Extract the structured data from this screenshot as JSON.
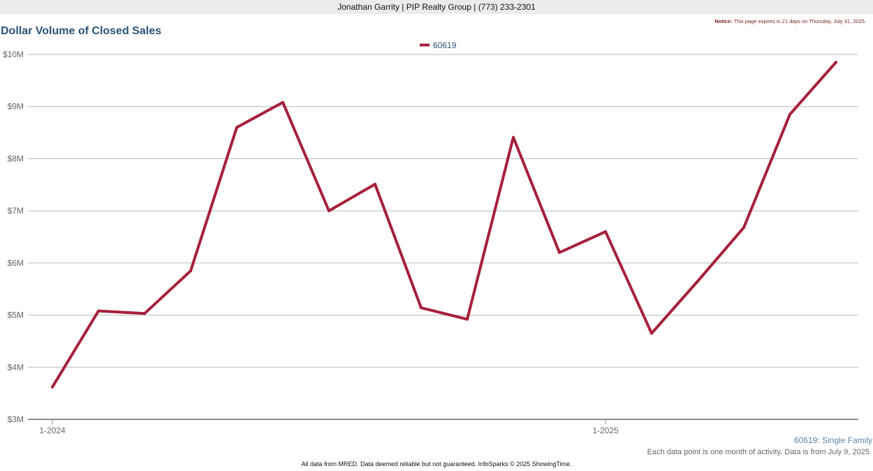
{
  "header": {
    "contact": "Jonathan Garrity | PIP Realty Group | (773) 233-2301",
    "notice_label": "Notice:",
    "notice_text": "This page expires in 21 days on Thursday, July 31, 2025."
  },
  "chart_data": {
    "type": "line",
    "title": "Dollar Volume of Closed Sales",
    "xlabel": "",
    "ylabel": "",
    "x": [
      "2024-01",
      "2024-02",
      "2024-03",
      "2024-04",
      "2024-05",
      "2024-06",
      "2024-07",
      "2024-08",
      "2024-09",
      "2024-10",
      "2024-11",
      "2024-12",
      "2025-01",
      "2025-02",
      "2025-03",
      "2025-04",
      "2025-05",
      "2025-06"
    ],
    "series": [
      {
        "name": "60619",
        "color": "#a6203a",
        "values": [
          3.62,
          5.08,
          5.03,
          5.85,
          8.6,
          9.08,
          7.0,
          7.51,
          5.14,
          4.92,
          8.41,
          6.2,
          6.6,
          4.65,
          5.65,
          6.68,
          8.85,
          9.85
        ]
      }
    ],
    "ylim": [
      3,
      10
    ],
    "y_ticks": [
      {
        "value": 3,
        "label": "$3M"
      },
      {
        "value": 4,
        "label": "$4M"
      },
      {
        "value": 5,
        "label": "$5M"
      },
      {
        "value": 6,
        "label": "$6M"
      },
      {
        "value": 7,
        "label": "$7M"
      },
      {
        "value": 8,
        "label": "$8M"
      },
      {
        "value": 9,
        "label": "$9M"
      },
      {
        "value": 10,
        "label": "$10M"
      }
    ],
    "x_ticks": [
      {
        "index": 0,
        "label": "1-2024"
      },
      {
        "index": 12,
        "label": "1-2025"
      }
    ],
    "grid": true,
    "legend_position": "top-center"
  },
  "captions": {
    "series_type": "60619: Single Family",
    "note": "Each data point is one month of activity. Data is from July 9, 2025."
  },
  "footer": {
    "text": "All data from MRED. Data deemed reliable but not guaranteed. InfoSparks © 2025 ShowingTime."
  }
}
